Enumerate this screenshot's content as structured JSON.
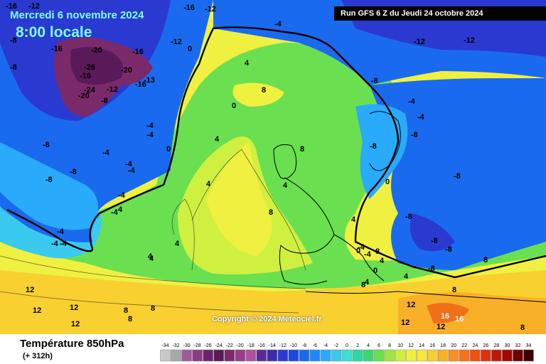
{
  "header": {
    "date": "Mercredi 6 novembre 2024",
    "time": "8:00 locale",
    "run": "Run GFS 6 Z du Jeudi 24 octobre 2024"
  },
  "copyright": "Copyright © 2024 Meteociel.fr",
  "footer": {
    "title": "Température 850hPa",
    "subtitle": "(+ 312h)"
  },
  "legend": {
    "values": [
      "-34",
      "-32",
      "-30",
      "-28",
      "-26",
      "-24",
      "-22",
      "-20",
      "-18",
      "-16",
      "-14",
      "-12",
      "-10",
      "-8",
      "-6",
      "-4",
      "-2",
      "0",
      "2",
      "4",
      "6",
      "8",
      "10",
      "12",
      "14",
      "16",
      "18",
      "20",
      "22",
      "24",
      "26",
      "28",
      "30",
      "32",
      "34"
    ],
    "colors": [
      "#c8c8c8",
      "#a8a8a8",
      "#a05a9a",
      "#8a3a86",
      "#6f2070",
      "#5a1a5a",
      "#7a2a6a",
      "#9a3a8a",
      "#b050a0",
      "#5a2a9a",
      "#3a2ab0",
      "#2a3ad0",
      "#1a4ae0",
      "#1a6af0",
      "#1a8afa",
      "#2aaafa",
      "#3acaf0",
      "#3ae0d0",
      "#2ad8a0",
      "#3ad870",
      "#6ae050",
      "#a0e840",
      "#d0f040",
      "#f0f040",
      "#f8e838",
      "#f8d030",
      "#f8b028",
      "#f89020",
      "#f87018",
      "#f05010",
      "#e03010",
      "#c01808",
      "#a00808",
      "#700000",
      "#400000"
    ]
  },
  "map": {
    "labels": [
      {
        "t": "-16",
        "c": "dk"
      },
      {
        "t": "-12",
        "c": "dk"
      },
      {
        "t": "-16",
        "c": "dk"
      },
      {
        "t": "-12",
        "c": "dk"
      },
      {
        "t": "-4",
        "c": "dk"
      },
      {
        "t": "-8",
        "c": "dk"
      },
      {
        "t": "-16",
        "c": "dk"
      },
      {
        "t": "-20",
        "c": "dk"
      },
      {
        "t": "-16",
        "c": "dk"
      },
      {
        "t": "-12",
        "c": "dk"
      },
      {
        "t": "0",
        "c": "dk"
      },
      {
        "t": "-8",
        "c": "dk"
      },
      {
        "t": "-26",
        "c": "dk"
      },
      {
        "t": "-20",
        "c": "dk"
      },
      {
        "t": "-16",
        "c": "dk"
      },
      {
        "t": "-16",
        "c": "dk"
      },
      {
        "t": "-13",
        "c": "dk"
      },
      {
        "t": "-24",
        "c": "dk"
      },
      {
        "t": "-20",
        "c": "dk"
      },
      {
        "t": "-12",
        "c": "dk"
      },
      {
        "t": "-8",
        "c": "dk"
      },
      {
        "t": "-12",
        "c": "dk"
      },
      {
        "t": "-12",
        "c": "dk"
      },
      {
        "t": "-8",
        "c": "dk"
      },
      {
        "t": "4",
        "c": "dk"
      },
      {
        "t": "8",
        "c": "dk"
      },
      {
        "t": "0",
        "c": "dk"
      },
      {
        "t": "-4",
        "c": "dk"
      },
      {
        "t": "-4",
        "c": "dk"
      },
      {
        "t": "-4",
        "c": "dk"
      },
      {
        "t": "0",
        "c": "dk"
      },
      {
        "t": "4",
        "c": "dk"
      },
      {
        "t": "-4",
        "c": "dk"
      },
      {
        "t": "-4",
        "c": "dk"
      },
      {
        "t": "-4",
        "c": "dk"
      },
      {
        "t": "-8",
        "c": "dk"
      },
      {
        "t": "-8",
        "c": "dk"
      },
      {
        "t": "-8",
        "c": "dk"
      },
      {
        "t": "8",
        "c": "dk"
      },
      {
        "t": "-4",
        "c": "dk"
      },
      {
        "t": "-8",
        "c": "dk"
      },
      {
        "t": "-4",
        "c": "dk"
      },
      {
        "t": "-4",
        "c": "dk"
      },
      {
        "t": "-4",
        "c": "dk"
      },
      {
        "t": "-8",
        "c": "dk"
      },
      {
        "t": "-8",
        "c": "dk"
      },
      {
        "t": "4",
        "c": "dk"
      },
      {
        "t": "0",
        "c": "dk"
      },
      {
        "t": "4",
        "c": "dk"
      },
      {
        "t": "8",
        "c": "dk"
      },
      {
        "t": "4",
        "c": "dk"
      },
      {
        "t": "4",
        "c": "dk"
      },
      {
        "t": "4",
        "c": "dk"
      },
      {
        "t": "-8",
        "c": "dk"
      },
      {
        "t": "-4",
        "c": "dk"
      },
      {
        "t": "-4",
        "c": "dk"
      },
      {
        "t": "4",
        "c": "dk"
      },
      {
        "t": "-4",
        "c": "dk"
      },
      {
        "t": "-4",
        "c": "dk"
      },
      {
        "t": "8",
        "c": "dk"
      },
      {
        "t": "4",
        "c": "dk"
      },
      {
        "t": "0",
        "c": "dk"
      },
      {
        "t": "4",
        "c": "dk"
      },
      {
        "t": "0",
        "c": "dk"
      },
      {
        "t": "4",
        "c": "dk"
      },
      {
        "t": "-8",
        "c": "dk"
      },
      {
        "t": "-8",
        "c": "dk"
      },
      {
        "t": "-8",
        "c": "dk"
      },
      {
        "t": "8",
        "c": "dk"
      },
      {
        "t": "4",
        "c": "dk"
      },
      {
        "t": "8",
        "c": "dk"
      },
      {
        "t": "8",
        "c": "dk"
      },
      {
        "t": "12",
        "c": "dk"
      },
      {
        "t": "8",
        "c": "dk"
      },
      {
        "t": "12",
        "c": "dk"
      },
      {
        "t": "12",
        "c": "dk"
      },
      {
        "t": "12",
        "c": "dk"
      },
      {
        "t": "8",
        "c": "dk"
      },
      {
        "t": "8",
        "c": "dk"
      },
      {
        "t": "12",
        "c": "dk"
      },
      {
        "t": "16",
        "c": "dk"
      },
      {
        "t": "16",
        "c": "dk"
      },
      {
        "t": "12",
        "c": "dk"
      },
      {
        "t": "12",
        "c": "dk"
      },
      {
        "t": "16",
        "c": "wh"
      },
      {
        "t": "16",
        "c": "wh"
      },
      {
        "t": "8",
        "c": "dk"
      }
    ]
  }
}
